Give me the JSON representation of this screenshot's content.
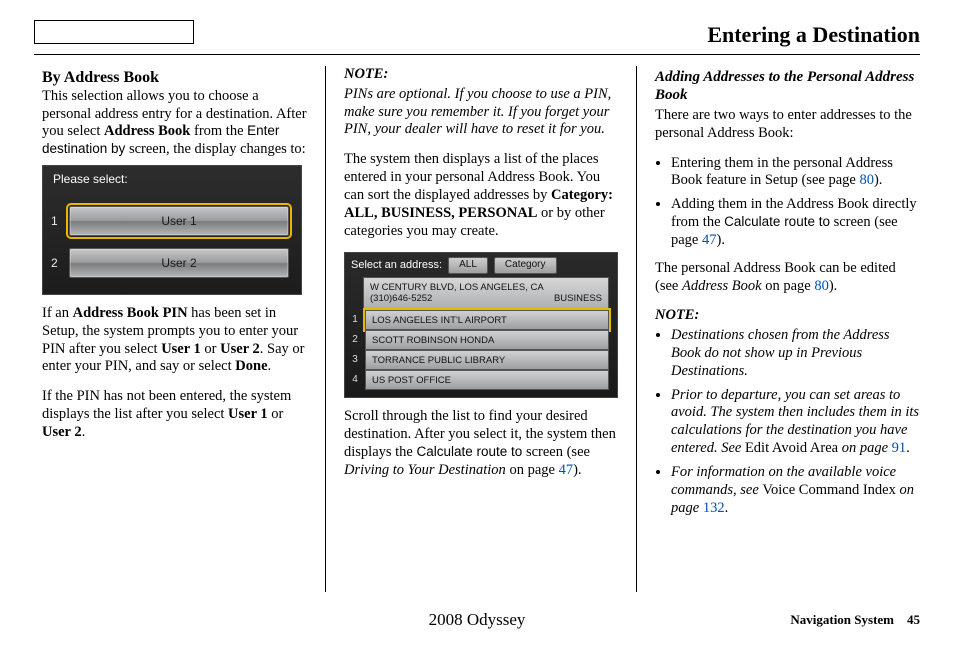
{
  "header": {
    "pageTitle": "Entering a Destination"
  },
  "col1": {
    "h2": "By Address Book",
    "p1_a": "This selection allows you to choose a personal address entry for a destination. After you select ",
    "p1_b": "Address Book",
    "p1_c": " from the ",
    "p1_d": "Enter destination by",
    "p1_e": " screen, the display changes to:",
    "s1": {
      "title": "Please select:",
      "n1": "1",
      "n2": "2",
      "btn1": "User 1",
      "btn2": "User 2"
    },
    "p2_a": "If an ",
    "p2_b": "Address Book PIN",
    "p2_c": " has been set in Setup, the system prompts you to enter your PIN after you select ",
    "p2_d": "User 1",
    "p2_e": " or ",
    "p2_f": "User 2",
    "p2_g": ". Say or enter your PIN, and say or select ",
    "p2_h": "Done",
    "p2_i": ".",
    "p3_a": "If the PIN has not been entered, the system displays the list after you select ",
    "p3_b": "User 1",
    "p3_c": " or ",
    "p3_d": "User 2",
    "p3_e": "."
  },
  "col2": {
    "noteLabel": "NOTE:",
    "note": "PINs are optional. If you choose to use a PIN, make sure you remember it. If you forget your PIN, your dealer will have to reset it for you.",
    "p1_a": "The system then displays a list of the places entered in your personal Address Book. You can sort the displayed addresses by ",
    "p1_b": "Category: ALL, BUSINESS, PERSONAL",
    "p1_c": " or by other categories you may create.",
    "s2": {
      "hdr": "Select an address:",
      "pill1": "ALL",
      "pill2": "Category",
      "info_l1": "W CENTURY BLVD, LOS ANGELES, CA",
      "info_l2a": "(310)646-5252",
      "info_l2b": "BUSINESS",
      "items": {
        "n1": "1",
        "t1": "LOS ANGELES INT'L AIRPORT",
        "n2": "2",
        "t2": "SCOTT ROBINSON HONDA",
        "n3": "3",
        "t3": "TORRANCE PUBLIC LIBRARY",
        "n4": "4",
        "t4": "US POST OFFICE"
      }
    },
    "p2_a": "Scroll through the list to find your desired destination. After you select it, the system then displays the ",
    "p2_b": "Calculate route to",
    "p2_c": " screen (see ",
    "p2_d": "Driving to Your Destination",
    "p2_e": " on page ",
    "p2_f": "47",
    "p2_g": ")."
  },
  "col3": {
    "h3": "Adding Addresses to the Personal Address Book",
    "p1": "There are two ways to enter addresses to the personal Address Book:",
    "li1_a": "Entering them in the personal Address Book feature in Setup (see page ",
    "li1_b": "80",
    "li1_c": ").",
    "li2_a": "Adding them in the Address Book directly from the ",
    "li2_b": "Calculate route to",
    "li2_c": " screen (see page ",
    "li2_d": "47",
    "li2_e": ").",
    "p2_a": "The personal Address Book can be edited (see ",
    "p2_b": "Address Book",
    "p2_c": " on page ",
    "p2_d": "80",
    "p2_e": ").",
    "noteLabel": "NOTE:",
    "n1": "Destinations chosen from the Address Book do not show up in Previous Destinations.",
    "n2_a": "Prior to departure, you can set areas to avoid. The system then includes them in its calculations for the destination you have entered. See ",
    "n2_b": "Edit Avoid Area ",
    "n2_c": "on page ",
    "n2_d": "91",
    "n2_e": ".",
    "n3_a": "For information on the available voice commands, see ",
    "n3_b": "Voice Command Index ",
    "n3_c": "on page ",
    "n3_d": "132",
    "n3_e": "."
  },
  "footer": {
    "center": "2008  Odyssey",
    "rightLabel": "Navigation System",
    "pageNum": "45"
  }
}
